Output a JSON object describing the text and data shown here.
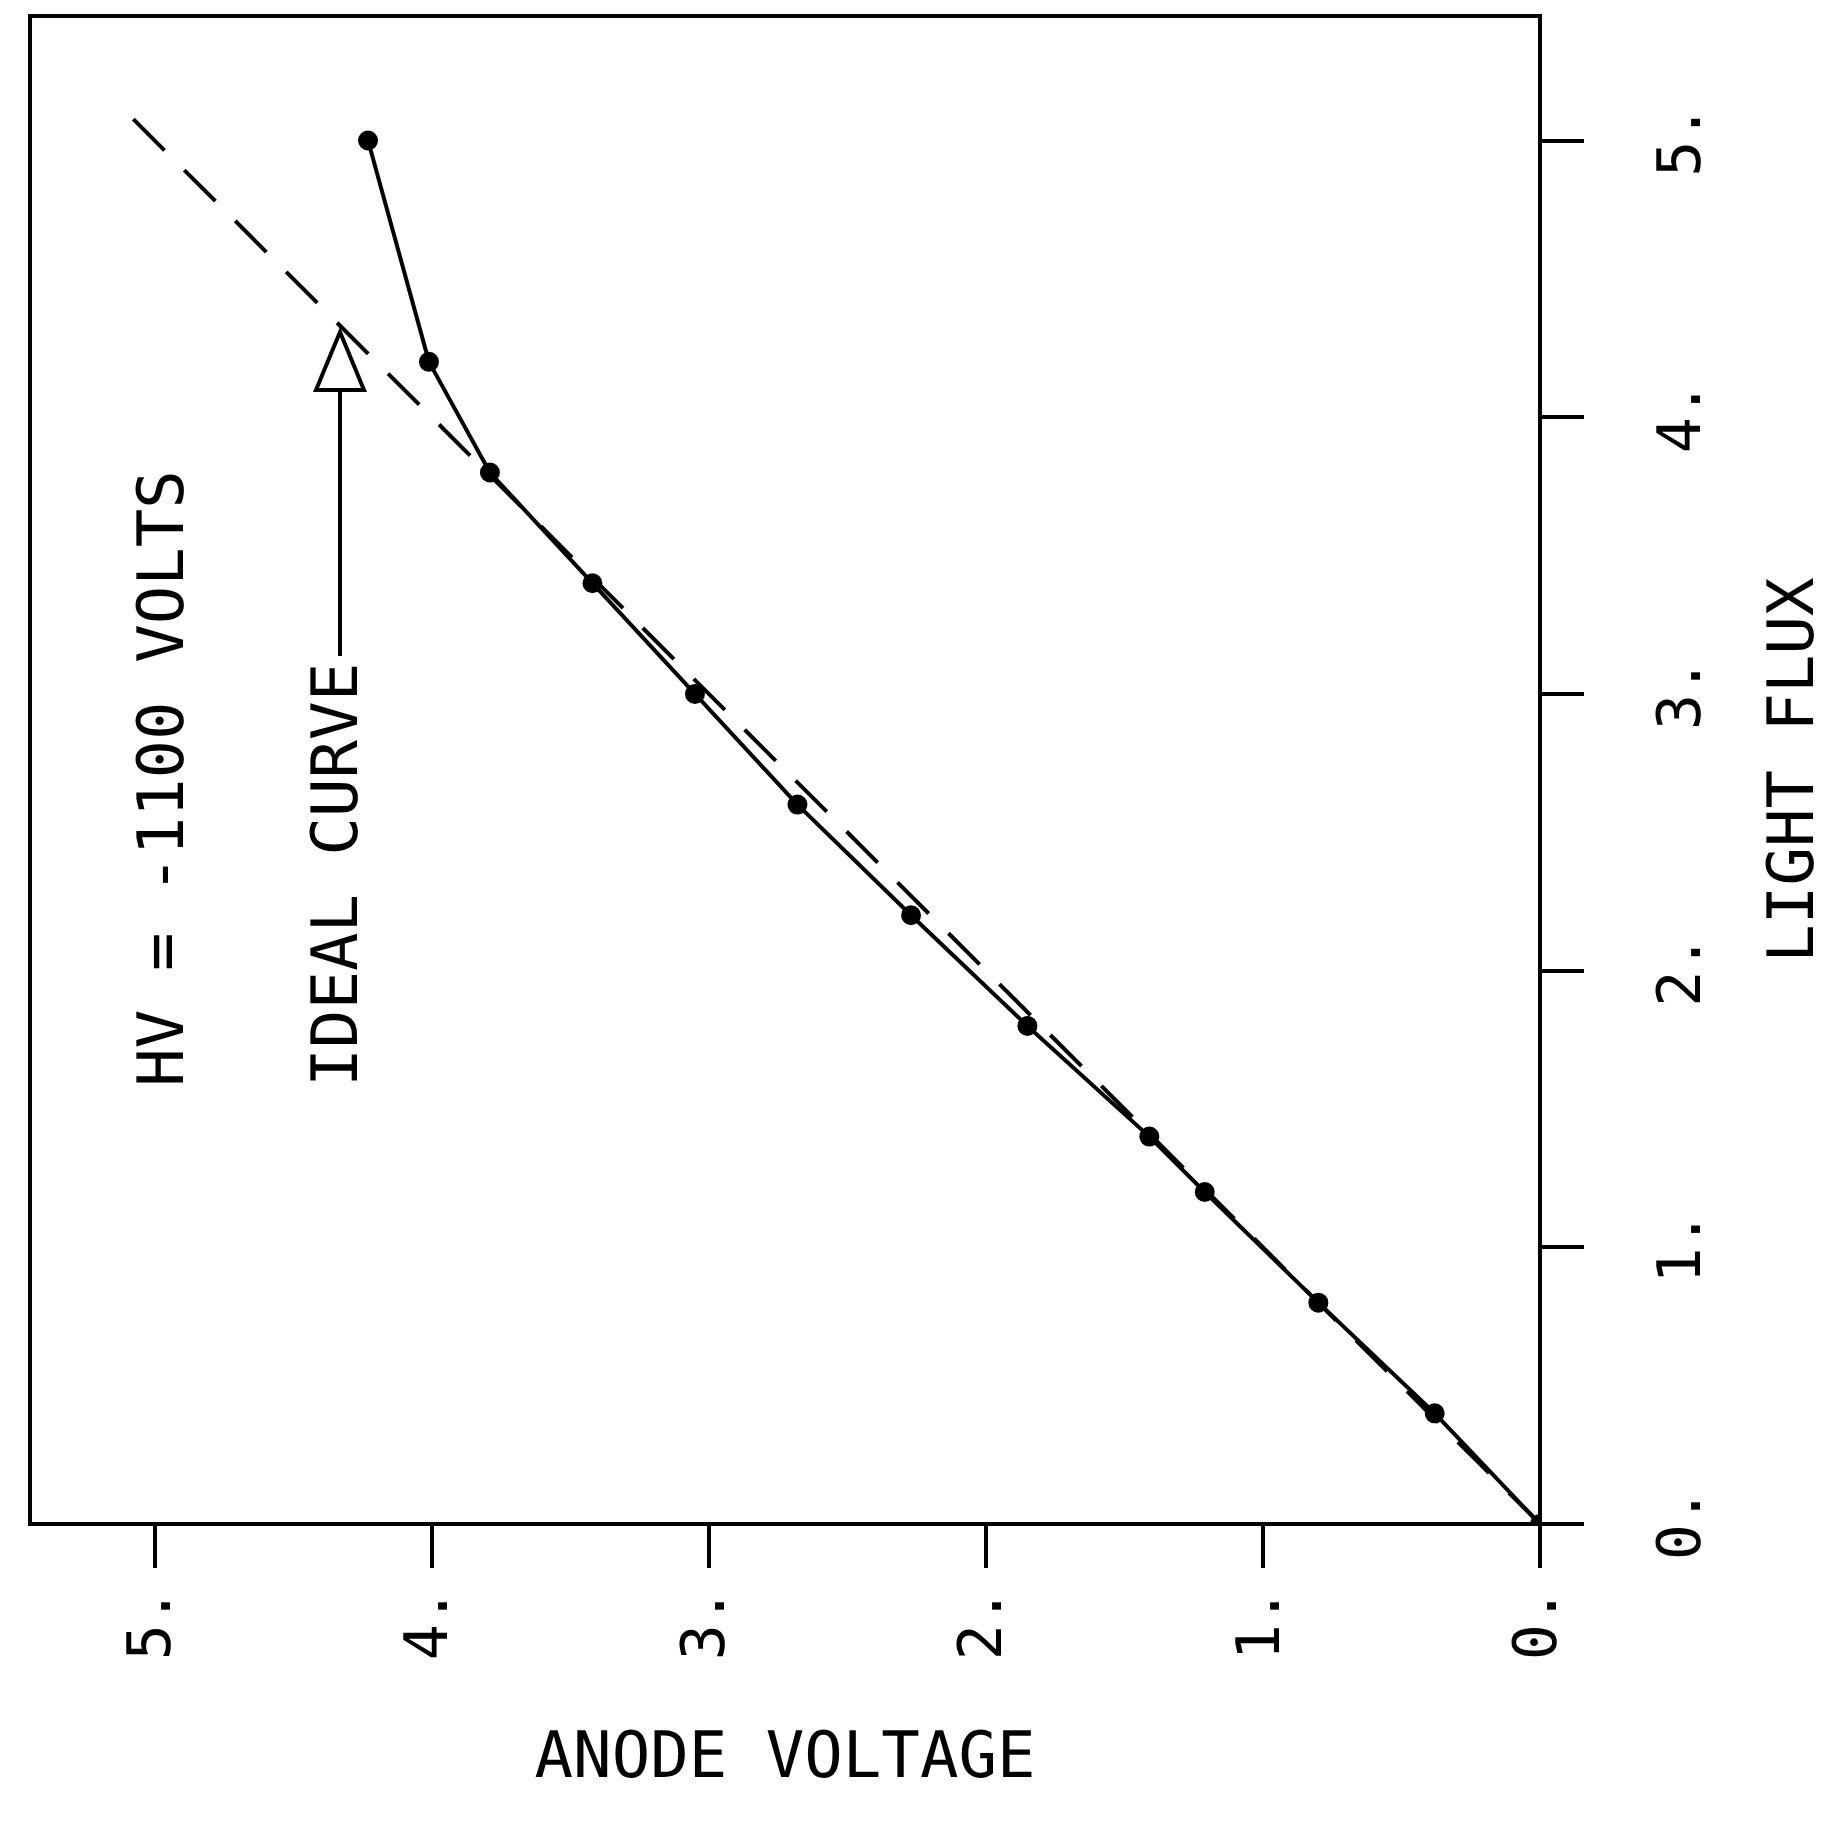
{
  "chart_data": {
    "type": "line",
    "xlabel": "ANODE VOLTAGE",
    "ylabel": "LIGHT FLUX",
    "xlim": [
      5.45,
      0
    ],
    "ylim": [
      0,
      5.45
    ],
    "xticks": [
      {
        "value": 5,
        "label": "5."
      },
      {
        "value": 4,
        "label": "4."
      },
      {
        "value": 3,
        "label": "3."
      },
      {
        "value": 2,
        "label": "2."
      },
      {
        "value": 1,
        "label": "1."
      },
      {
        "value": 0,
        "label": "0."
      }
    ],
    "yticks": [
      {
        "value": 0,
        "label": "0."
      },
      {
        "value": 1,
        "label": "1."
      },
      {
        "value": 2,
        "label": "2."
      },
      {
        "value": 3,
        "label": "3."
      },
      {
        "value": 4,
        "label": "4."
      },
      {
        "value": 5,
        "label": "5."
      }
    ],
    "series": [
      {
        "color": "#000000",
        "marker": "circle",
        "line_style": "solid",
        "x": [
          0,
          0.38,
          0.8,
          1.21,
          1.41,
          1.85,
          2.27,
          2.68,
          3.05,
          3.42,
          3.79,
          4.01,
          4.23
        ],
        "values": [
          0,
          0.4,
          0.8,
          1.2,
          1.4,
          1.8,
          2.2,
          2.6,
          3.0,
          3.4,
          3.8,
          4.2,
          5.0
        ]
      },
      {
        "color": "#000000",
        "marker": "none",
        "line_style": "dashed",
        "x": [
          0,
          5.1
        ],
        "values": [
          0,
          5.1
        ]
      }
    ],
    "annotations": [
      "HV = -1100 VOLTS",
      "IDEAL CURVE"
    ],
    "grid": false
  }
}
